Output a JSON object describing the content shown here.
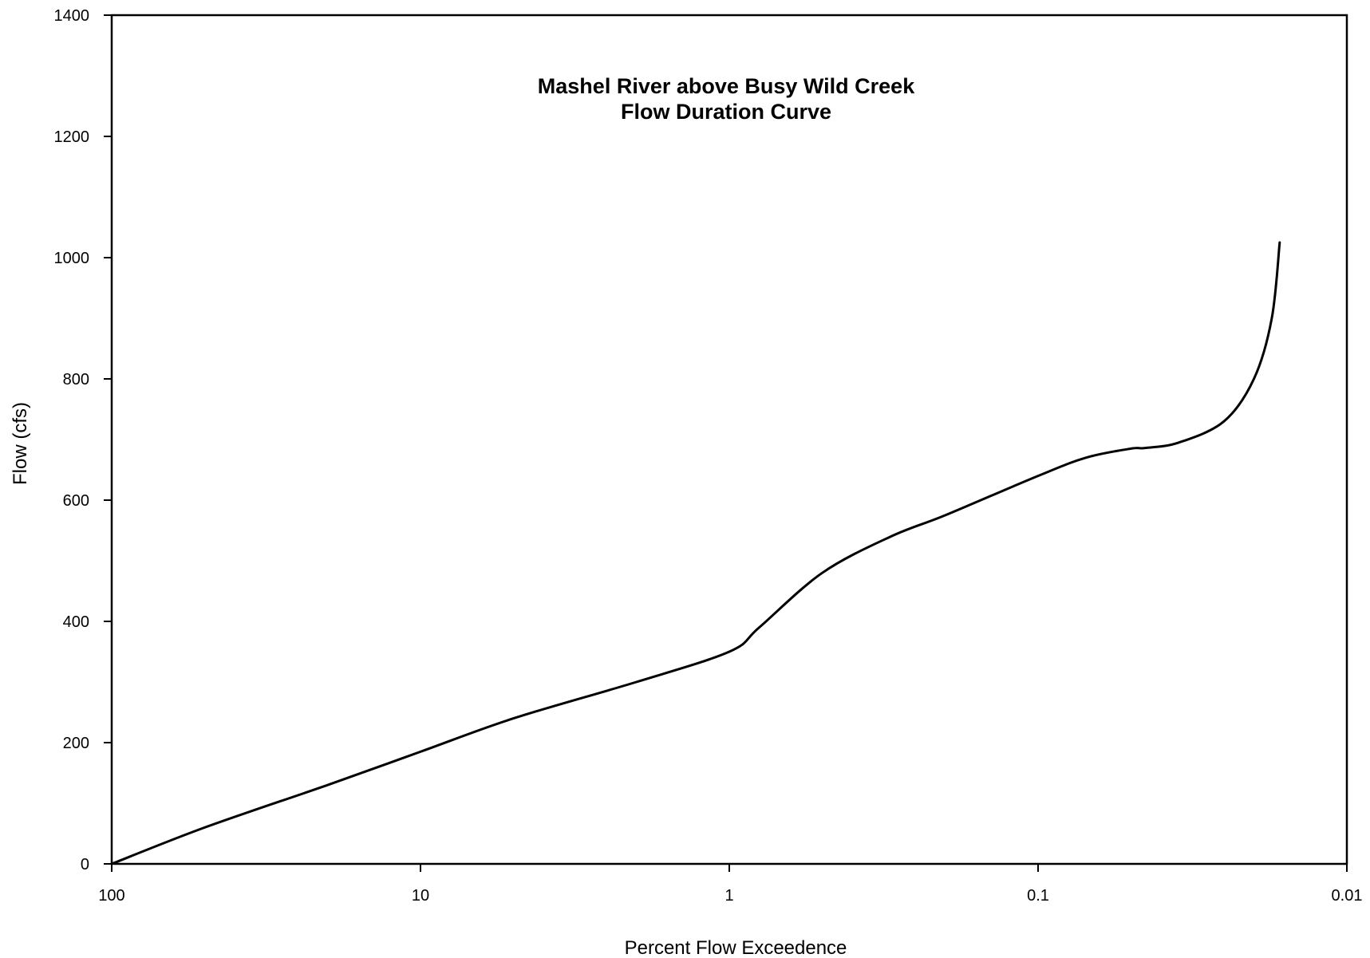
{
  "chart_data": {
    "type": "line",
    "title": "Mashel River above Busy Wild Creek",
    "subtitle": "Flow Duration Curve",
    "xlabel": "Percent Flow Exceedence",
    "ylabel": "Flow (cfs)",
    "x_scale": "log",
    "x_reversed": true,
    "xlim": [
      100,
      0.01
    ],
    "ylim": [
      0,
      1400
    ],
    "grid": false,
    "x_ticks": [
      100,
      10,
      1,
      0.1,
      0.01
    ],
    "x_tick_labels": [
      "100",
      "10",
      "1",
      "0.1",
      "0.01"
    ],
    "y_ticks": [
      0,
      200,
      400,
      600,
      800,
      1000,
      1200,
      1400
    ],
    "y_tick_labels": [
      "0",
      "200",
      "400",
      "600",
      "800",
      "1000",
      "1200",
      "1400"
    ],
    "series": [
      {
        "x": [
          100,
          50,
          20,
          10,
          5,
          2,
          1,
          0.8,
          0.5,
          0.3,
          0.2,
          0.1,
          0.07,
          0.05,
          0.045,
          0.035,
          0.025,
          0.02,
          0.0175,
          0.0165
        ],
        "y": [
          0,
          60,
          130,
          185,
          240,
          300,
          350,
          390,
          480,
          540,
          575,
          640,
          670,
          685,
          686,
          695,
          730,
          800,
          900,
          1025
        ]
      }
    ]
  }
}
